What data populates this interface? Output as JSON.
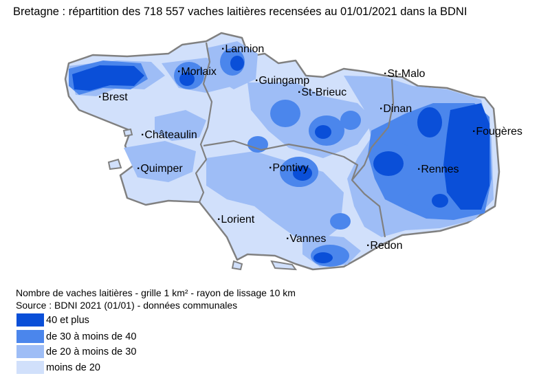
{
  "title": "Bretagne : répartition des 718 557 vaches laitières recensées au 01/01/2021 dans la BDNI",
  "cities": [
    {
      "name": "Lannion"
    },
    {
      "name": "Morlaix"
    },
    {
      "name": "Guingamp"
    },
    {
      "name": "St-Malo"
    },
    {
      "name": "St-Brieuc"
    },
    {
      "name": "Brest"
    },
    {
      "name": "Dinan"
    },
    {
      "name": "Fougères"
    },
    {
      "name": "Châteaulin"
    },
    {
      "name": "Pontivy"
    },
    {
      "name": "Quimper"
    },
    {
      "name": "Rennes"
    },
    {
      "name": "Lorient"
    },
    {
      "name": "Vannes"
    },
    {
      "name": "Redon"
    }
  ],
  "notes": {
    "grid": "Nombre de vaches laitières - grille 1 km² - rayon de lissage 10 km",
    "source": "Source : BDNI 2021 (01/01) - données communales"
  },
  "legend": [
    {
      "label": "40 et plus",
      "color": "#0a4fd8"
    },
    {
      "label": "de 30 à moins de 40",
      "color": "#4b86ec"
    },
    {
      "label": "de 20 à moins de 30",
      "color": "#9ebdf6"
    },
    {
      "label": "moins de 20",
      "color": "#d1e0fb"
    }
  ],
  "colors": {
    "border": "#808080",
    "background": "#ffffff"
  }
}
